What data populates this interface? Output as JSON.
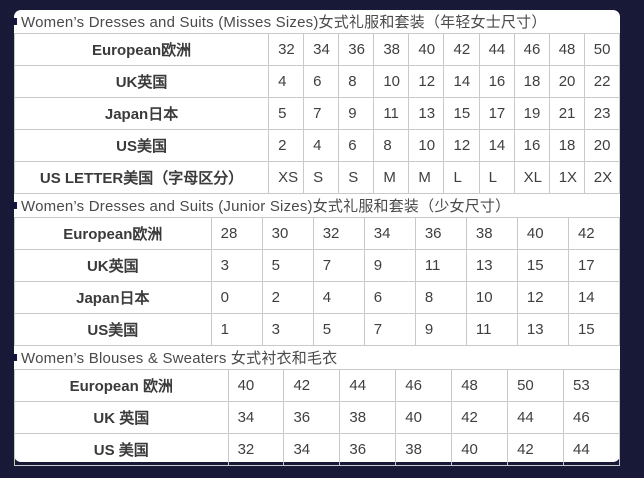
{
  "colors": {
    "page_background": "#05050f",
    "page_dot_pattern": "#2c2c5c",
    "panel_background": "#ffffff",
    "table_border": "#c9c9c9",
    "text": "#3f3f3f",
    "bullet": "#15153a"
  },
  "sections": [
    {
      "title": "Women’s Dresses and Suits (Misses Sizes)女式礼服和套装（年轻女士尺寸）",
      "label_col_width": "42%",
      "rows": [
        {
          "label": "European欧洲",
          "values": [
            "32",
            "34",
            "36",
            "38",
            "40",
            "42",
            "44",
            "46",
            "48",
            "50"
          ]
        },
        {
          "label": "UK英国",
          "values": [
            "4",
            "6",
            "8",
            "10",
            "12",
            "14",
            "16",
            "18",
            "20",
            "22"
          ]
        },
        {
          "label": "Japan日本",
          "values": [
            "5",
            "7",
            "9",
            "11",
            "13",
            "15",
            "17",
            "19",
            "21",
            "23"
          ]
        },
        {
          "label": "US美国",
          "values": [
            "2",
            "4",
            "6",
            "8",
            "10",
            "12",
            "14",
            "16",
            "18",
            "20"
          ]
        },
        {
          "label": "US LETTER美国（字母区分）",
          "values": [
            "XS",
            "S",
            "S",
            "M",
            "M",
            "L",
            "L",
            "XL",
            "1X",
            "2X"
          ]
        }
      ]
    },
    {
      "title": "Women’s Dresses and Suits (Junior Sizes)女式礼服和套装（少女尺寸）",
      "label_col_width": "32.5%",
      "rows": [
        {
          "label": "European欧洲",
          "values": [
            "28",
            "30",
            "32",
            "34",
            "36",
            "38",
            "40",
            "42"
          ]
        },
        {
          "label": "UK英国",
          "values": [
            "3",
            "5",
            "7",
            "9",
            "11",
            "13",
            "15",
            "17"
          ]
        },
        {
          "label": "Japan日本",
          "values": [
            "0",
            "2",
            "4",
            "6",
            "8",
            "10",
            "12",
            "14"
          ]
        },
        {
          "label": "US美国",
          "values": [
            "1",
            "3",
            "5",
            "7",
            "9",
            "11",
            "13",
            "15"
          ]
        }
      ]
    },
    {
      "title": "Women’s Blouses & Sweaters 女式衬衣和毛衣",
      "label_col_width": "35.3%",
      "rows": [
        {
          "label": "European 欧洲",
          "values": [
            "40",
            "42",
            "44",
            "46",
            "48",
            "50",
            "53"
          ]
        },
        {
          "label": "UK 英国",
          "values": [
            "34",
            "36",
            "38",
            "40",
            "42",
            "44",
            "46"
          ]
        },
        {
          "label": "US 美国",
          "values": [
            "32",
            "34",
            "36",
            "38",
            "40",
            "42",
            "44"
          ]
        }
      ]
    }
  ]
}
